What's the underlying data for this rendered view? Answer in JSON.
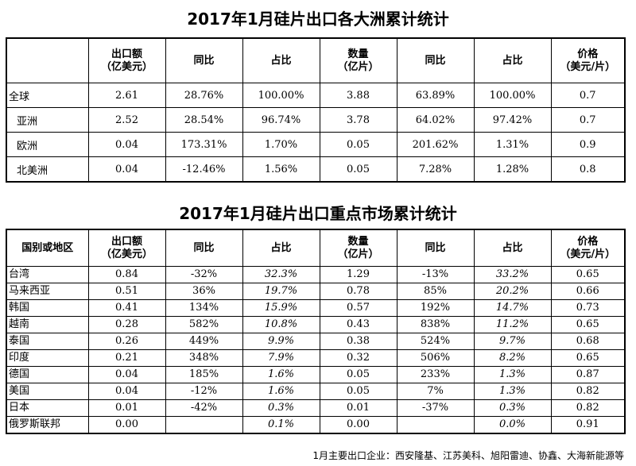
{
  "title1": "2017年1月硅片出口各大洲累计统计",
  "title2": "2017年1月硅片出口重点市场累计统计",
  "headers1": [
    "",
    "出口额\n（亿美元）",
    "同比",
    "占比",
    "数量\n（亿片）",
    "同比",
    "占比",
    "价格\n（美元/片）"
  ],
  "headers2": [
    "国别或地区",
    "出口额\n（亿美元）",
    "同比",
    "占比",
    "数量\n（亿片）",
    "同比",
    "占比",
    "价格\n（美元/片）"
  ],
  "continents": [
    {
      "name": "全球",
      "value": "2.61",
      "yoy": "28.76%",
      "share": "100.00%",
      "qty": "3.88",
      "qty_yoy": "63.89%",
      "qty_share": "100.00%",
      "price": "0.7"
    },
    {
      "name": "亚洲",
      "value": "2.52",
      "yoy": "28.54%",
      "share": "96.74%",
      "qty": "3.78",
      "qty_yoy": "64.02%",
      "qty_share": "97.42%",
      "price": "0.7"
    },
    {
      "name": "欧洲",
      "value": "0.04",
      "yoy": "173.31%",
      "share": "1.70%",
      "qty": "0.05",
      "qty_yoy": "201.62%",
      "qty_share": "1.31%",
      "price": "0.9"
    },
    {
      "name": "北美洲",
      "value": "0.04",
      "yoy": "-12.46%",
      "share": "1.56%",
      "qty": "0.05",
      "qty_yoy": "7.28%",
      "qty_share": "1.28%",
      "price": "0.8"
    }
  ],
  "markets": [
    {
      "name": "台湾",
      "value": "0.84",
      "yoy": "-32%",
      "share": "32.3%",
      "qty": "1.29",
      "qty_yoy": "-13%",
      "qty_share": "33.2%",
      "price": "0.65"
    },
    {
      "name": "马来西亚",
      "value": "0.51",
      "yoy": "36%",
      "share": "19.7%",
      "qty": "0.78",
      "qty_yoy": "85%",
      "qty_share": "20.2%",
      "price": "0.66"
    },
    {
      "name": "韩国",
      "value": "0.41",
      "yoy": "134%",
      "share": "15.9%",
      "qty": "0.57",
      "qty_yoy": "192%",
      "qty_share": "14.7%",
      "price": "0.73"
    },
    {
      "name": "越南",
      "value": "0.28",
      "yoy": "582%",
      "share": "10.8%",
      "qty": "0.43",
      "qty_yoy": "838%",
      "qty_share": "11.2%",
      "price": "0.65"
    },
    {
      "name": "泰国",
      "value": "0.26",
      "yoy": "449%",
      "share": "9.9%",
      "qty": "0.38",
      "qty_yoy": "524%",
      "qty_share": "9.7%",
      "price": "0.68"
    },
    {
      "name": "印度",
      "value": "0.21",
      "yoy": "348%",
      "share": "7.9%",
      "qty": "0.32",
      "qty_yoy": "506%",
      "qty_share": "8.2%",
      "price": "0.65"
    },
    {
      "name": "德国",
      "value": "0.04",
      "yoy": "185%",
      "share": "1.6%",
      "qty": "0.05",
      "qty_yoy": "233%",
      "qty_share": "1.3%",
      "price": "0.87"
    },
    {
      "name": "美国",
      "value": "0.04",
      "yoy": "-12%",
      "share": "1.6%",
      "qty": "0.05",
      "qty_yoy": "7%",
      "qty_share": "1.3%",
      "price": "0.82"
    },
    {
      "name": "日本",
      "value": "0.01",
      "yoy": "-42%",
      "share": "0.3%",
      "qty": "0.01",
      "qty_yoy": "-37%",
      "qty_share": "0.3%",
      "price": "0.82"
    },
    {
      "name": "俄罗斯联邦",
      "value": "0.00",
      "yoy": "",
      "share": "0.1%",
      "qty": "0.00",
      "qty_yoy": "",
      "qty_share": "0.0%",
      "price": "0.91"
    }
  ],
  "footnote": "1月主要出口企业：西安隆基、江苏美科、旭阳雷迪、协鑫、大海新能源等"
}
